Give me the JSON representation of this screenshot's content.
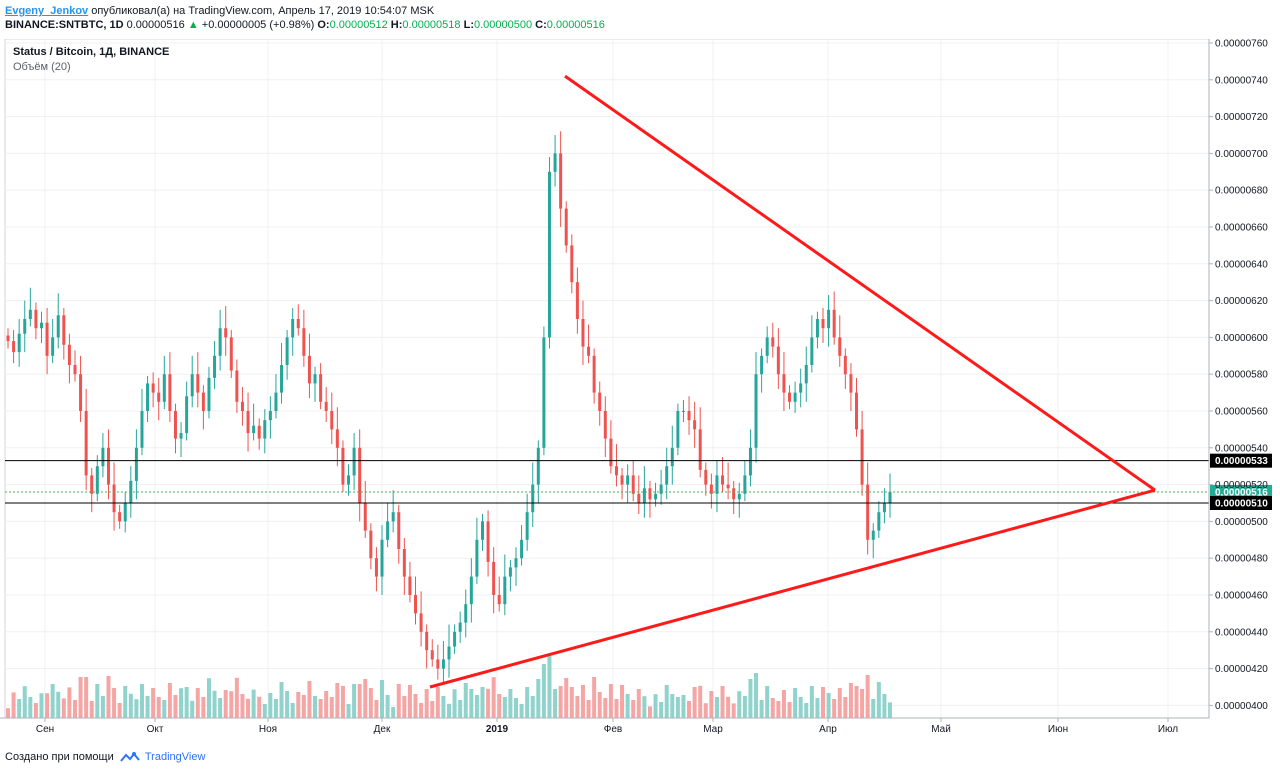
{
  "header": {
    "author": "Evgeny_Jenkov",
    "published": "опубликовал(а) на TradingView.com, Апрель 17, 2019 10:54:07 MSK",
    "symbol": "BINANCE:SNTBTC, 1D",
    "last": "0.00000516",
    "change_arrow": "▲",
    "change": "+0.00000005 (+0.98%)",
    "o_label": "O:",
    "o": "0.00000512",
    "h_label": "H:",
    "h": "0.00000518",
    "l_label": "L:",
    "l": "0.00000500",
    "c_label": "C:",
    "c": "0.00000516"
  },
  "legend": {
    "title": "Status / Bitcoin, 1Д, BINANCE",
    "volume": "Объём (20)"
  },
  "footer": {
    "text": "Создано при помощи",
    "brand": "TradingView",
    "logo_icon": "tradingview-logo-icon"
  },
  "colors": {
    "up": "#26a69a",
    "down": "#ef5350",
    "vol_up": "#8fd3cc",
    "vol_down": "#f5a6a4",
    "trend": "#ff1a1a",
    "grid": "#eef0f3",
    "axis": "#aeb3bd",
    "price_line": "#4caf50"
  },
  "chart_data": {
    "type": "candlestick",
    "title": "Status / Bitcoin, 1Д, BINANCE",
    "x_ticks": [
      "Сен",
      "Окт",
      "Ноя",
      "Дек",
      "2019",
      "Фев",
      "Мар",
      "Апр",
      "Май",
      "Июн",
      "Июл"
    ],
    "y_ticks": [
      "0.00000400",
      "0.00000420",
      "0.00000440",
      "0.00000460",
      "0.00000480",
      "0.00000500",
      "0.00000520",
      "0.00000540",
      "0.00000560",
      "0.00000580",
      "0.00000600",
      "0.00000620",
      "0.00000640",
      "0.00000660",
      "0.00000680",
      "0.00000700",
      "0.00000720",
      "0.00000740",
      "0.00000760"
    ],
    "ylim": [
      3.9e-06,
      7.6e-06
    ],
    "candles_close": [
      598,
      592,
      602,
      610,
      615,
      605,
      608,
      590,
      600,
      612,
      596,
      585,
      580,
      560,
      525,
      515,
      530,
      540,
      520,
      505,
      500,
      510,
      522,
      540,
      560,
      575,
      570,
      565,
      580,
      560,
      545,
      548,
      568,
      580,
      570,
      560,
      578,
      590,
      605,
      600,
      582,
      565,
      560,
      548,
      552,
      545,
      555,
      560,
      570,
      585,
      600,
      610,
      605,
      590,
      575,
      580,
      565,
      560,
      550,
      540,
      520,
      525,
      540,
      510,
      495,
      480,
      470,
      490,
      500,
      505,
      485,
      470,
      460,
      450,
      440,
      430,
      425,
      420,
      425,
      432,
      440,
      445,
      455,
      470,
      490,
      500,
      478,
      460,
      455,
      470,
      475,
      480,
      490,
      505,
      520,
      540,
      600,
      690,
      700,
      670,
      650,
      630,
      610,
      595,
      590,
      570,
      560,
      545,
      530,
      525,
      520,
      525,
      515,
      510,
      518,
      512,
      515,
      520,
      530,
      540,
      560,
      560,
      555,
      550,
      528,
      520,
      515,
      525,
      520,
      518,
      512,
      515,
      525,
      540,
      580,
      590,
      600,
      595,
      580,
      570,
      565,
      570,
      575,
      585,
      600,
      610,
      605,
      615,
      600,
      590,
      580,
      570,
      550,
      520,
      490,
      495,
      505,
      510,
      516
    ],
    "candle_dates_note": "",
    "volume_sample": [
      10,
      9,
      8,
      7,
      6,
      5,
      4,
      9,
      8,
      6,
      7,
      5
    ],
    "current_price": "0.00000516",
    "levels": [
      "0.00000533",
      "0.00000510"
    ],
    "trendlines": [
      {
        "from": [
          "Янв 2019",
          "0.00000742"
        ],
        "to": [
          "Июл",
          "0.00000517"
        ]
      },
      {
        "from": [
          "Дек",
          "0.00000410"
        ],
        "to": [
          "Июл",
          "0.00000517"
        ]
      }
    ]
  }
}
